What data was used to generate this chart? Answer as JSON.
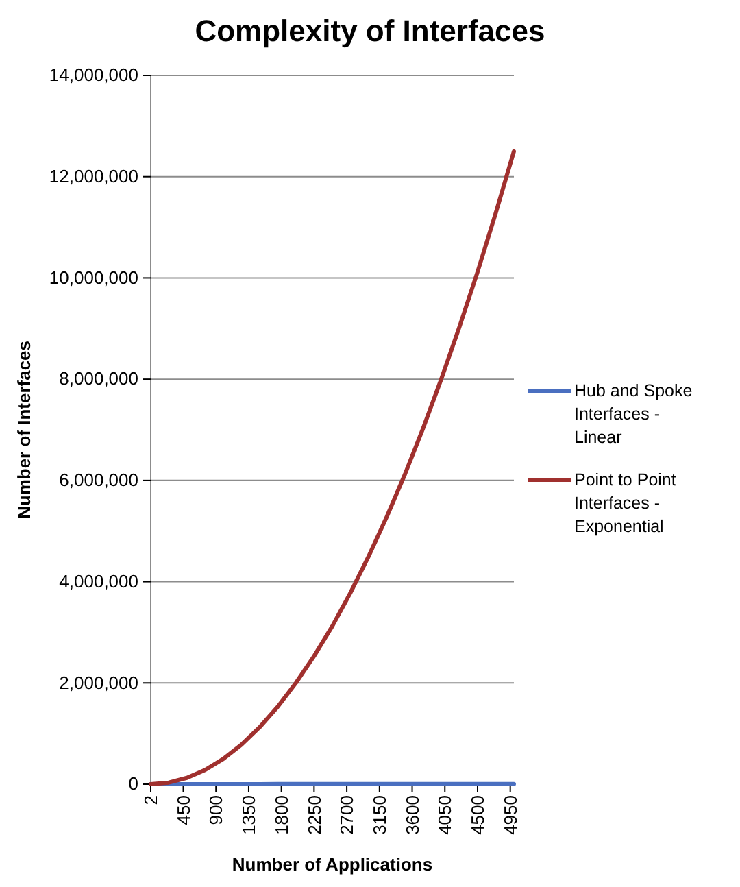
{
  "chart_data": {
    "type": "line",
    "title": "Complexity of Interfaces",
    "xlabel": "Number of Applications",
    "ylabel": "Number of Interfaces",
    "x": [
      2,
      250,
      500,
      750,
      1000,
      1250,
      1500,
      1750,
      2000,
      2250,
      2500,
      2750,
      3000,
      3250,
      3500,
      3750,
      4000,
      4250,
      4500,
      4750,
      5000
    ],
    "series": [
      {
        "name": "Hub and Spoke Interfaces - Linear",
        "color": "#4a6fc0",
        "values": [
          2,
          250,
          500,
          750,
          1000,
          1250,
          1500,
          1750,
          2000,
          2250,
          2500,
          2750,
          3000,
          3250,
          3500,
          3750,
          4000,
          4250,
          4500,
          4750,
          5000
        ]
      },
      {
        "name": "Point to Point Interfaces - Exponential",
        "color": "#a0302e",
        "values": [
          1,
          31000,
          125000,
          281000,
          500000,
          781000,
          1125000,
          1530000,
          2000000,
          2530000,
          3120000,
          3780000,
          4500000,
          5280000,
          6120000,
          7030000,
          8000000,
          9030000,
          10120000,
          11280000,
          12500000
        ]
      }
    ],
    "xlim": [
      2,
      5000
    ],
    "xticks": [
      2,
      450,
      900,
      1350,
      1800,
      2250,
      2700,
      3150,
      3600,
      4050,
      4500,
      4950
    ],
    "ylim": [
      0,
      14000000
    ],
    "yticks": [
      {
        "value": 0,
        "label": "0"
      },
      {
        "value": 2000000,
        "label": "2,000,000"
      },
      {
        "value": 4000000,
        "label": "4,000,000"
      },
      {
        "value": 6000000,
        "label": "6,000,000"
      },
      {
        "value": 8000000,
        "label": "8,000,000"
      },
      {
        "value": 10000000,
        "label": "10,000,000"
      },
      {
        "value": 12000000,
        "label": "12,000,000"
      },
      {
        "value": 14000000,
        "label": "14,000,000"
      }
    ],
    "grid": "y",
    "legend": "right",
    "marker": "none",
    "line_style": "solid"
  }
}
